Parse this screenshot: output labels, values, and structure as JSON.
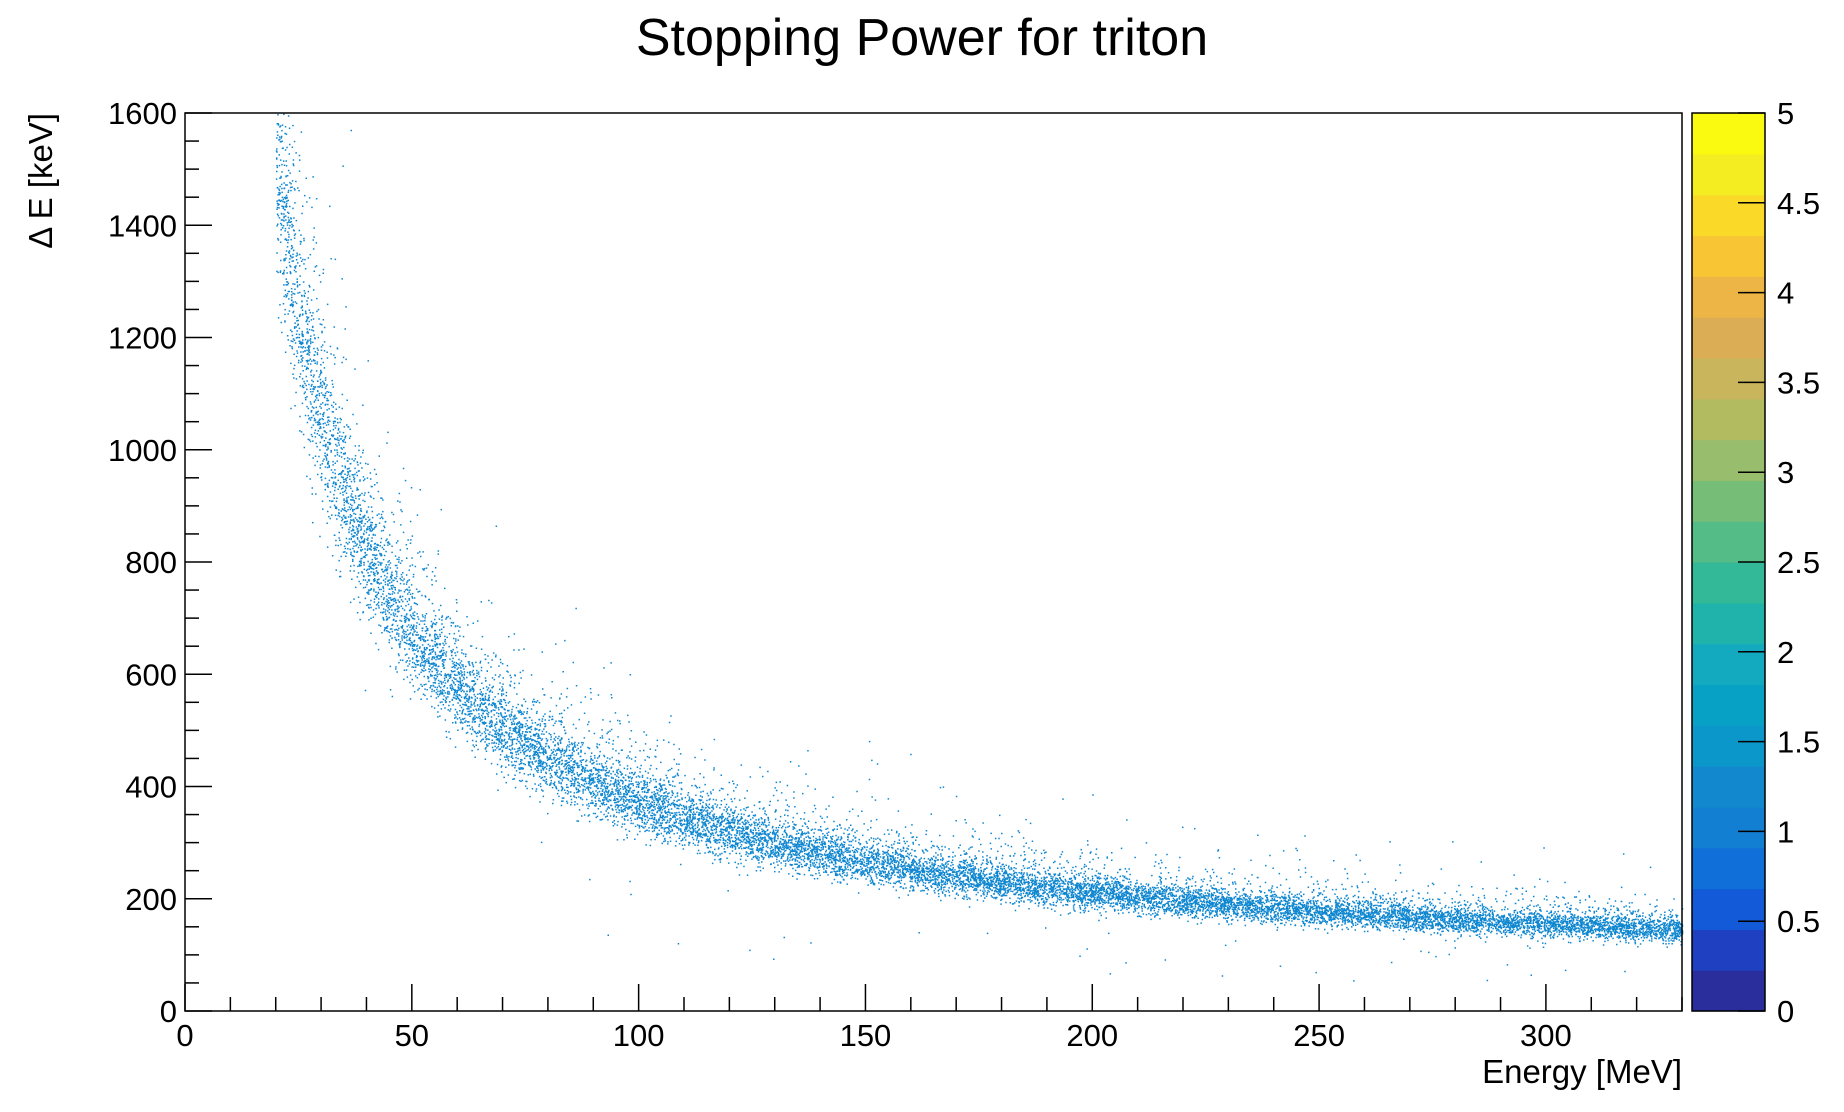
{
  "chart_data": {
    "type": "heatmap",
    "title": "Stopping Power for triton",
    "xlabel": "Energy [MeV]",
    "ylabel": "Δ E [keV]",
    "xlim": [
      0,
      330
    ],
    "ylim": [
      0,
      1600
    ],
    "x_ticks": [
      "0",
      "50",
      "100",
      "150",
      "200",
      "250",
      "300"
    ],
    "x_tick_values": [
      0,
      50,
      100,
      150,
      200,
      250,
      300
    ],
    "y_ticks": [
      "0",
      "200",
      "400",
      "600",
      "800",
      "1000",
      "1200",
      "1400",
      "1600"
    ],
    "y_tick_values": [
      0,
      200,
      400,
      600,
      800,
      1000,
      1200,
      1400,
      1600
    ],
    "z_range": [
      0,
      5
    ],
    "z_ticks": [
      "0",
      "0.5",
      "1",
      "1.5",
      "2",
      "2.5",
      "3",
      "3.5",
      "4",
      "4.5",
      "5"
    ],
    "z_tick_values": [
      0,
      0.5,
      1,
      1.5,
      2,
      2.5,
      3,
      3.5,
      4,
      4.5,
      5
    ],
    "palette": [
      "#2a2e9c",
      "#1f40c0",
      "#135ad8",
      "#106fd8",
      "#137fd2",
      "#1289cf",
      "#0c97cb",
      "#08a1c6",
      "#13aac0",
      "#1fb3ac",
      "#33b898",
      "#53bc87",
      "#76bd78",
      "#98bd6c",
      "#b3bb61",
      "#c9b55c",
      "#dbae56",
      "#edb545",
      "#f8c634",
      "#fad928",
      "#f3ed22",
      "#f9fa0f"
    ],
    "point_color": "#0f87d0",
    "band_model": "dE = 23000 / E^0.915 + 30 (keV vs MeV)",
    "band_points": [
      {
        "x": 20,
        "y": 1600
      },
      {
        "x": 25,
        "y": 1380
      },
      {
        "x": 30,
        "y": 1220
      },
      {
        "x": 40,
        "y": 980
      },
      {
        "x": 50,
        "y": 830
      },
      {
        "x": 60,
        "y": 720
      },
      {
        "x": 70,
        "y": 640
      },
      {
        "x": 80,
        "y": 575
      },
      {
        "x": 100,
        "y": 480
      },
      {
        "x": 120,
        "y": 410
      },
      {
        "x": 150,
        "y": 340
      },
      {
        "x": 200,
        "y": 270
      },
      {
        "x": 250,
        "y": 225
      },
      {
        "x": 300,
        "y": 195
      },
      {
        "x": 330,
        "y": 180
      }
    ],
    "grid": false,
    "legend": "none"
  }
}
